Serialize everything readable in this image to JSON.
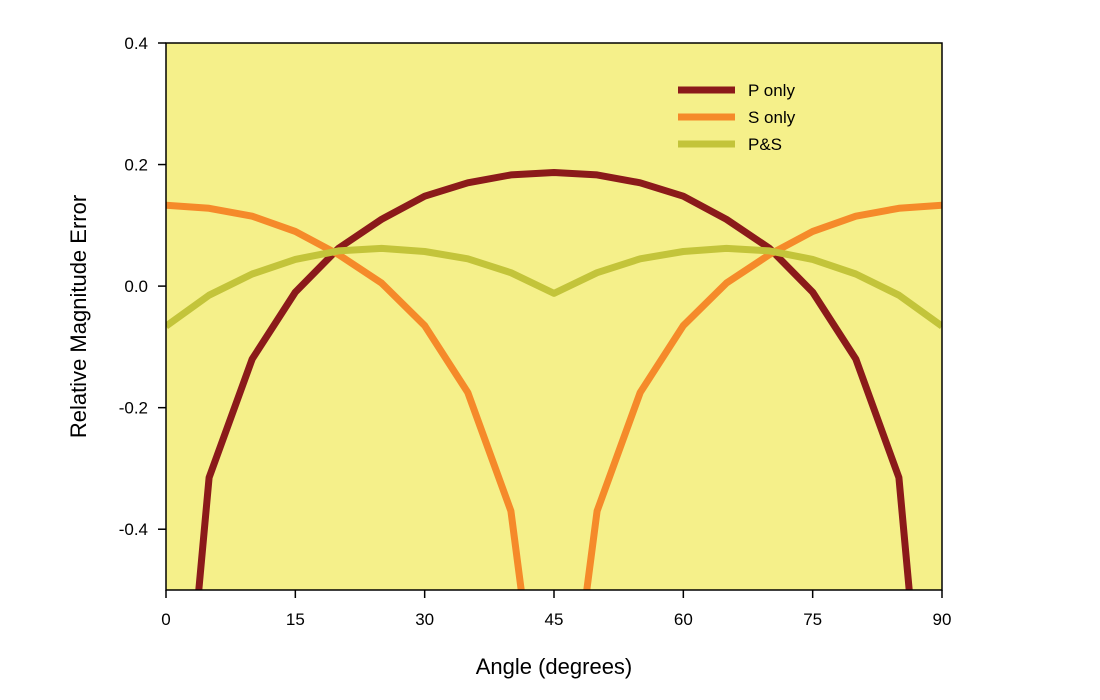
{
  "chart_data": {
    "type": "line",
    "title": "",
    "xlabel": "Angle (degrees)",
    "ylabel": "Relative Magnitude Error",
    "xlim": [
      0,
      90
    ],
    "ylim": [
      -0.5,
      0.4
    ],
    "xticks": [
      0,
      15,
      30,
      45,
      60,
      75,
      90
    ],
    "xtick_labels": [
      "0",
      "15",
      "30",
      "45",
      "60",
      "75",
      "90"
    ],
    "yticks": [
      0.4,
      0.2,
      0.0,
      -0.2,
      -0.4
    ],
    "ytick_labels": [
      "0.4",
      "0.2",
      "0.0",
      "-0.2",
      "-0.4"
    ],
    "grid": false,
    "legend_position": "top-right",
    "colors": {
      "plot_background": "#f5f08a",
      "p_only": "#8b1a1a",
      "s_only": "#f58a2a",
      "p_and_s": "#c3c43a"
    },
    "series": [
      {
        "name": "P only",
        "color": "#8b1a1a",
        "x": [
          3.8,
          5,
          10,
          15,
          20,
          25,
          30,
          35,
          40,
          45,
          50,
          55,
          60,
          65,
          70,
          75,
          80,
          85,
          86.2
        ],
        "y": [
          -0.5,
          -0.315,
          -0.12,
          -0.01,
          0.062,
          0.11,
          0.148,
          0.17,
          0.183,
          0.187,
          0.183,
          0.17,
          0.148,
          0.11,
          0.062,
          -0.01,
          -0.12,
          -0.315,
          -0.5
        ]
      },
      {
        "name": "S only",
        "color": "#f58a2a",
        "x": [
          0,
          5,
          10,
          15,
          20,
          25,
          30,
          35,
          40,
          41.2,
          null,
          48.8,
          50,
          55,
          60,
          65,
          70,
          75,
          80,
          85,
          90
        ],
        "y": [
          0.133,
          0.128,
          0.115,
          0.09,
          0.052,
          0.005,
          -0.065,
          -0.175,
          -0.37,
          -0.5,
          null,
          -0.5,
          -0.37,
          -0.175,
          -0.065,
          0.005,
          0.052,
          0.09,
          0.115,
          0.128,
          0.133
        ]
      },
      {
        "name": "P&S",
        "color": "#c3c43a",
        "x": [
          0,
          5,
          10,
          15,
          20,
          25,
          30,
          35,
          40,
          45,
          50,
          55,
          60,
          65,
          70,
          75,
          80,
          85,
          90
        ],
        "y": [
          -0.066,
          -0.015,
          0.02,
          0.044,
          0.058,
          0.062,
          0.057,
          0.045,
          0.022,
          -0.012,
          0.022,
          0.045,
          0.057,
          0.062,
          0.058,
          0.044,
          0.02,
          -0.015,
          -0.066
        ]
      }
    ]
  }
}
